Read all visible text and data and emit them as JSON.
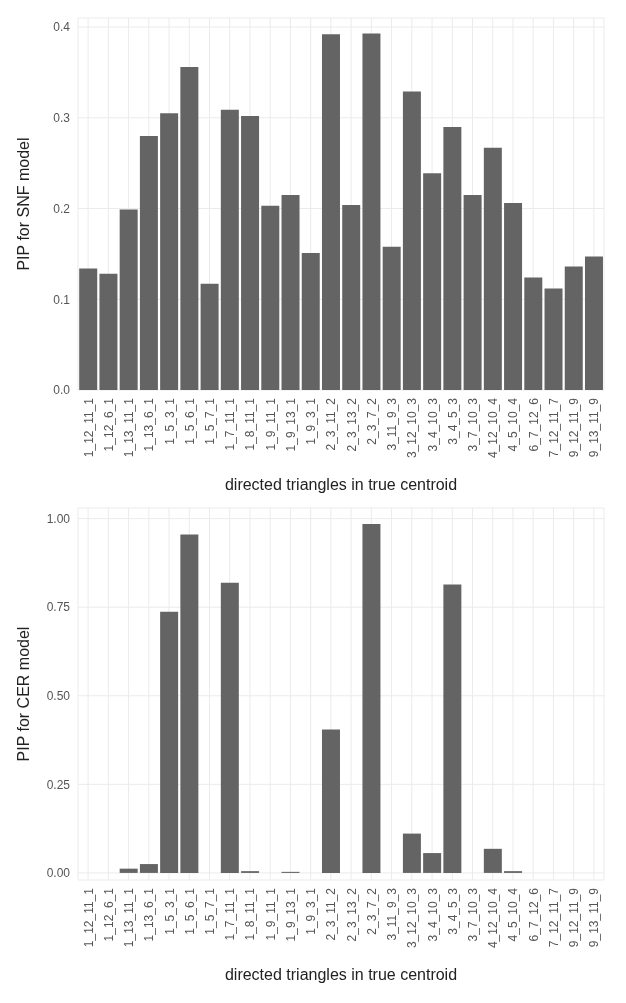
{
  "chart_data": [
    {
      "type": "bar",
      "ylabel": "PIP for SNF model",
      "xlabel": "directed triangles in true centroid",
      "categories": [
        "1_12_11_1",
        "1_12_6_1",
        "1_13_11_1",
        "1_13_6_1",
        "1_5_3_1",
        "1_5_6_1",
        "1_5_7_1",
        "1_7_11_1",
        "1_8_11_1",
        "1_9_11_1",
        "1_9_13_1",
        "1_9_3_1",
        "2_3_11_2",
        "2_3_13_2",
        "2_3_7_2",
        "3_11_9_3",
        "3_12_10_3",
        "3_4_10_3",
        "3_4_5_3",
        "3_7_10_3",
        "4_12_10_4",
        "4_5_10_4",
        "6_7_12_6",
        "7_12_11_7",
        "9_12_11_9",
        "9_13_11_9"
      ],
      "values": [
        0.134,
        0.128,
        0.199,
        0.28,
        0.305,
        0.356,
        0.117,
        0.309,
        0.302,
        0.203,
        0.215,
        0.151,
        0.392,
        0.204,
        0.393,
        0.158,
        0.329,
        0.239,
        0.29,
        0.215,
        0.267,
        0.206,
        0.124,
        0.112,
        0.136,
        0.147
      ],
      "color": "#646464",
      "ylim": [
        0,
        0.41
      ],
      "yticks": [
        {
          "value": 0,
          "label": "0.0"
        },
        0.1,
        0.2,
        0.3,
        0.4
      ],
      "grid": true
    },
    {
      "type": "bar",
      "ylabel": "PIP for CER model",
      "xlabel": "directed triangles in true centroid",
      "categories": [
        "1_12_11_1",
        "1_12_6_1",
        "1_13_11_1",
        "1_13_6_1",
        "1_5_3_1",
        "1_5_6_1",
        "1_5_7_1",
        "1_7_11_1",
        "1_8_11_1",
        "1_9_11_1",
        "1_9_13_1",
        "1_9_3_1",
        "2_3_11_2",
        "2_3_13_2",
        "2_3_7_2",
        "3_11_9_3",
        "3_12_10_3",
        "3_4_10_3",
        "3_4_5_3",
        "3_7_10_3",
        "4_12_10_4",
        "4_5_10_4",
        "6_7_12_6",
        "7_12_11_7",
        "9_12_11_9",
        "9_13_11_9"
      ],
      "values": [
        0,
        0,
        0.012,
        0.025,
        0.737,
        0.955,
        0,
        0.819,
        0.005,
        0,
        0.003,
        0,
        0.405,
        0,
        0.985,
        0,
        0.111,
        0.056,
        0.814,
        0,
        0.068,
        0.005,
        0,
        0,
        0,
        0
      ],
      "color": "#646464",
      "ylim": [
        -0.02,
        1.03
      ],
      "yticks": [
        {
          "value": 0,
          "label": "0.00"
        },
        {
          "value": 0.25,
          "label": "0.25"
        },
        {
          "value": 0.5,
          "label": "0.50"
        },
        {
          "value": 0.75,
          "label": "0.75"
        },
        {
          "value": 1,
          "label": "1.00"
        }
      ],
      "grid": true
    }
  ]
}
